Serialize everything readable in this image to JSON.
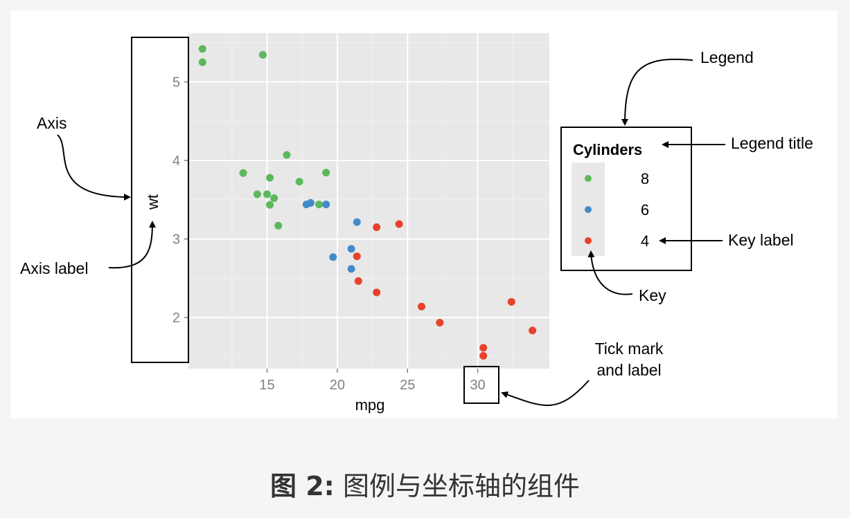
{
  "chart_data": {
    "type": "scatter",
    "xlabel": "mpg",
    "ylabel": "wt",
    "x_ticks": [
      15,
      20,
      25,
      30
    ],
    "y_ticks": [
      2,
      3,
      4,
      5
    ],
    "xlim": [
      9.4,
      35.1
    ],
    "ylim": [
      1.35,
      5.62
    ],
    "grid": true,
    "legend": {
      "title": "Cylinders",
      "placement": "right",
      "entries": [
        {
          "label": "8",
          "color": "#5cb85c"
        },
        {
          "label": "6",
          "color": "#428bca"
        },
        {
          "label": "4",
          "color": "#e8412d"
        }
      ]
    },
    "series": [
      {
        "name": "8",
        "color": "#5cb85c",
        "points": [
          [
            10.4,
            5.42
          ],
          [
            10.4,
            5.25
          ],
          [
            14.7,
            5.345
          ],
          [
            16.4,
            4.07
          ],
          [
            19.2,
            3.845
          ],
          [
            13.3,
            3.84
          ],
          [
            15.2,
            3.78
          ],
          [
            17.3,
            3.73
          ],
          [
            14.3,
            3.57
          ],
          [
            15.0,
            3.57
          ],
          [
            15.5,
            3.52
          ],
          [
            18.7,
            3.44
          ],
          [
            15.2,
            3.435
          ],
          [
            15.8,
            3.17
          ]
        ]
      },
      {
        "name": "6",
        "color": "#428bca",
        "points": [
          [
            17.8,
            3.44
          ],
          [
            18.1,
            3.46
          ],
          [
            19.2,
            3.44
          ],
          [
            21.4,
            3.215
          ],
          [
            21.0,
            2.875
          ],
          [
            19.7,
            2.77
          ],
          [
            21.0,
            2.62
          ]
        ]
      },
      {
        "name": "4",
        "color": "#e8412d",
        "points": [
          [
            22.8,
            3.15
          ],
          [
            24.4,
            3.19
          ],
          [
            21.4,
            2.78
          ],
          [
            21.5,
            2.465
          ],
          [
            22.8,
            2.32
          ],
          [
            26.0,
            2.14
          ],
          [
            27.3,
            1.935
          ],
          [
            30.4,
            1.615
          ],
          [
            30.4,
            1.513
          ],
          [
            32.4,
            2.2
          ],
          [
            33.9,
            1.835
          ]
        ]
      }
    ]
  },
  "annotations": {
    "axis": "Axis",
    "axis_label": "Axis label",
    "legend": "Legend",
    "legend_title": "Legend title",
    "key_label": "Key label",
    "key": "Key",
    "tick_line1": "Tick mark",
    "tick_line2": "and label"
  },
  "caption": {
    "prefix": "图 2:",
    "text": "图例与坐标轴的组件"
  },
  "colors": {
    "panel_bg": "#e8e8e8",
    "grid_major": "#ffffff",
    "grid_minor": "#f2f2f2",
    "tick_text": "#808080"
  }
}
